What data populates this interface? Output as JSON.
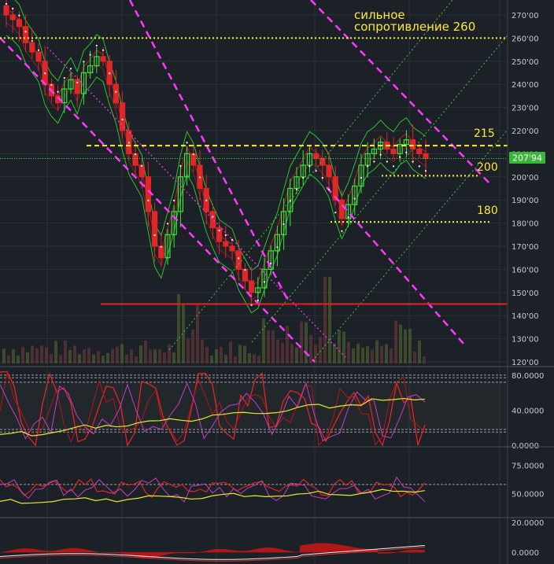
{
  "chart_data": [
    {
      "type": "candlestick",
      "title": "",
      "ylim": [
        117,
        277
      ],
      "y_ticks": [
        "270'00",
        "260'00",
        "250'00",
        "240'00",
        "230'00",
        "220'00",
        "210'00",
        "200'00",
        "190'00",
        "180'00",
        "170'00",
        "160'00",
        "150'00",
        "140'00",
        "130'00",
        "120'00"
      ],
      "last_price": {
        "label": "207'94",
        "value": 207.94
      },
      "annotations": [
        {
          "id": "res-260",
          "text": "сильное сопротивление 260",
          "line1": "сильное",
          "line2": "сопротивление 260",
          "level": 260
        },
        {
          "id": "lvl-215",
          "text": "215",
          "level": 213.5
        },
        {
          "id": "lvl-200",
          "text": "200",
          "level": 200.5
        },
        {
          "id": "lvl-180",
          "text": "180",
          "level": 180.5
        },
        {
          "id": "support",
          "text": "",
          "level": 145
        }
      ],
      "candles_close_approx": [
        270,
        268,
        265,
        258,
        254,
        250,
        240,
        235,
        232,
        238,
        242,
        236,
        245,
        248,
        252,
        250,
        240,
        232,
        220,
        210,
        205,
        200,
        185,
        170,
        165,
        175,
        185,
        200,
        210,
        205,
        195,
        185,
        178,
        172,
        170,
        168,
        160,
        155,
        150,
        152,
        160,
        168,
        175,
        185,
        195,
        200,
        205,
        210,
        208,
        205,
        200,
        190,
        182,
        188,
        196,
        205,
        210,
        212,
        215,
        212,
        210,
        214,
        216,
        212,
        210,
        208
      ],
      "grid": true
    },
    {
      "type": "line",
      "title": "",
      "ylim": [
        0,
        88
      ],
      "y_ticks": [
        "80.0000",
        "40.0000",
        "0.0000"
      ],
      "guides": [
        15,
        18,
        72,
        77,
        80
      ]
    },
    {
      "type": "line",
      "title": "",
      "ylim": [
        30,
        90
      ],
      "y_ticks": [
        "75.0000",
        "50.0000"
      ],
      "guides": [
        58
      ]
    },
    {
      "type": "area",
      "title": "",
      "ylim": [
        -8,
        22
      ],
      "y_ticks": [
        "20.0000",
        "0.0000"
      ]
    }
  ],
  "colors": {
    "background": "#1b2126",
    "grid": "#2a3238",
    "bull": "#39e639",
    "bear": "#e02626",
    "channel": "#ff38ff",
    "annotation": "#ffe83a",
    "support": "#e82020",
    "price_badge": "#39b539",
    "axis_text": "#c8c8c8"
  }
}
